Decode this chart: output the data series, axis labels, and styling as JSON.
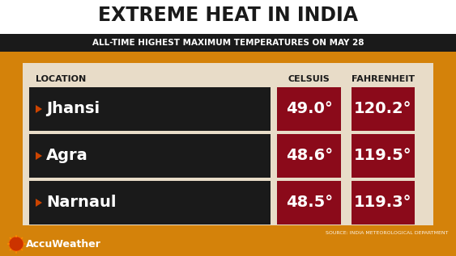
{
  "title": "EXTREME HEAT IN INDIA",
  "subtitle": "ALL-TIME HIGHEST MAXIMUM TEMPERATURES ON MAY 28",
  "source": "SOURCE: INDIA METEOROLOGICAL DEPARTMENT",
  "header_location": "LOCATION",
  "header_celsius": "CELSUIS",
  "header_fahrenheit": "FAHRENHEIT",
  "locations": [
    "Jhansi",
    "Agra",
    "Narnaul"
  ],
  "celsius": [
    "49.0°",
    "48.6°",
    "48.5°"
  ],
  "fahrenheit": [
    "120.2°",
    "119.5°",
    "119.3°"
  ],
  "bg_color": "#d4820a",
  "title_bg": "#ffffff",
  "subtitle_bg": "#1a1a1a",
  "table_bg": "#e8dcc8",
  "row_dark": "#1a1a1a",
  "cell_red": "#8b0a1a",
  "text_white": "#ffffff",
  "text_dark": "#1a1a1a",
  "arrow_color": "#cc4400",
  "accu_logo_color": "#cc3300"
}
